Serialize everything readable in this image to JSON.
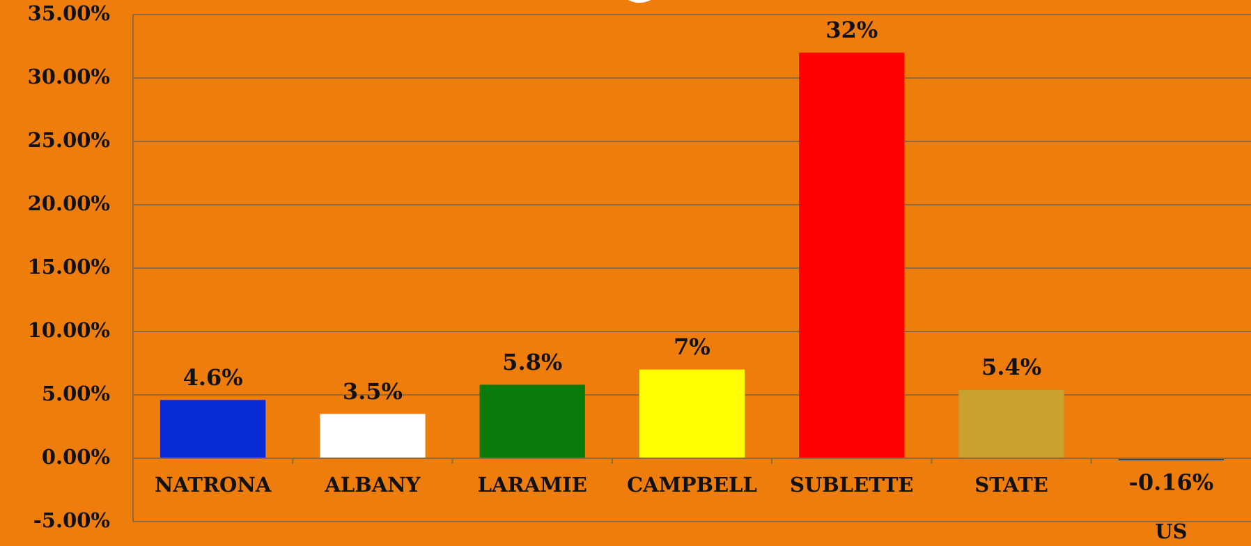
{
  "chart_data": {
    "type": "bar",
    "categories": [
      "NATRONA",
      "ALBANY",
      "LARAMIE",
      "CAMPBELL",
      "SUBLETTE",
      "STATE",
      "US"
    ],
    "values": [
      4.6,
      3.5,
      5.8,
      7,
      32,
      5.4,
      -0.16
    ],
    "value_labels": [
      "4.6%",
      "3.5%",
      "5.8%",
      "7%",
      "32%",
      "5.4%",
      "-0.16%"
    ],
    "colors": [
      "#0a2bd8",
      "#ffffff",
      "#0a7a0a",
      "#ffff00",
      "#ff0000",
      "#c9a12e",
      "#1f4e79"
    ],
    "ylim": [
      -5,
      35
    ],
    "yticks": [
      {
        "value": -5,
        "label": "-5.00%"
      },
      {
        "value": 0,
        "label": "0.00%"
      },
      {
        "value": 5,
        "label": "5.00%"
      },
      {
        "value": 10,
        "label": "10.00%"
      },
      {
        "value": 15,
        "label": "15.00%"
      },
      {
        "value": 20,
        "label": "20.00%"
      },
      {
        "value": 25,
        "label": "25.00%"
      },
      {
        "value": 30,
        "label": "30.00%"
      },
      {
        "value": 35,
        "label": "35.00%"
      }
    ],
    "grid": true
  }
}
